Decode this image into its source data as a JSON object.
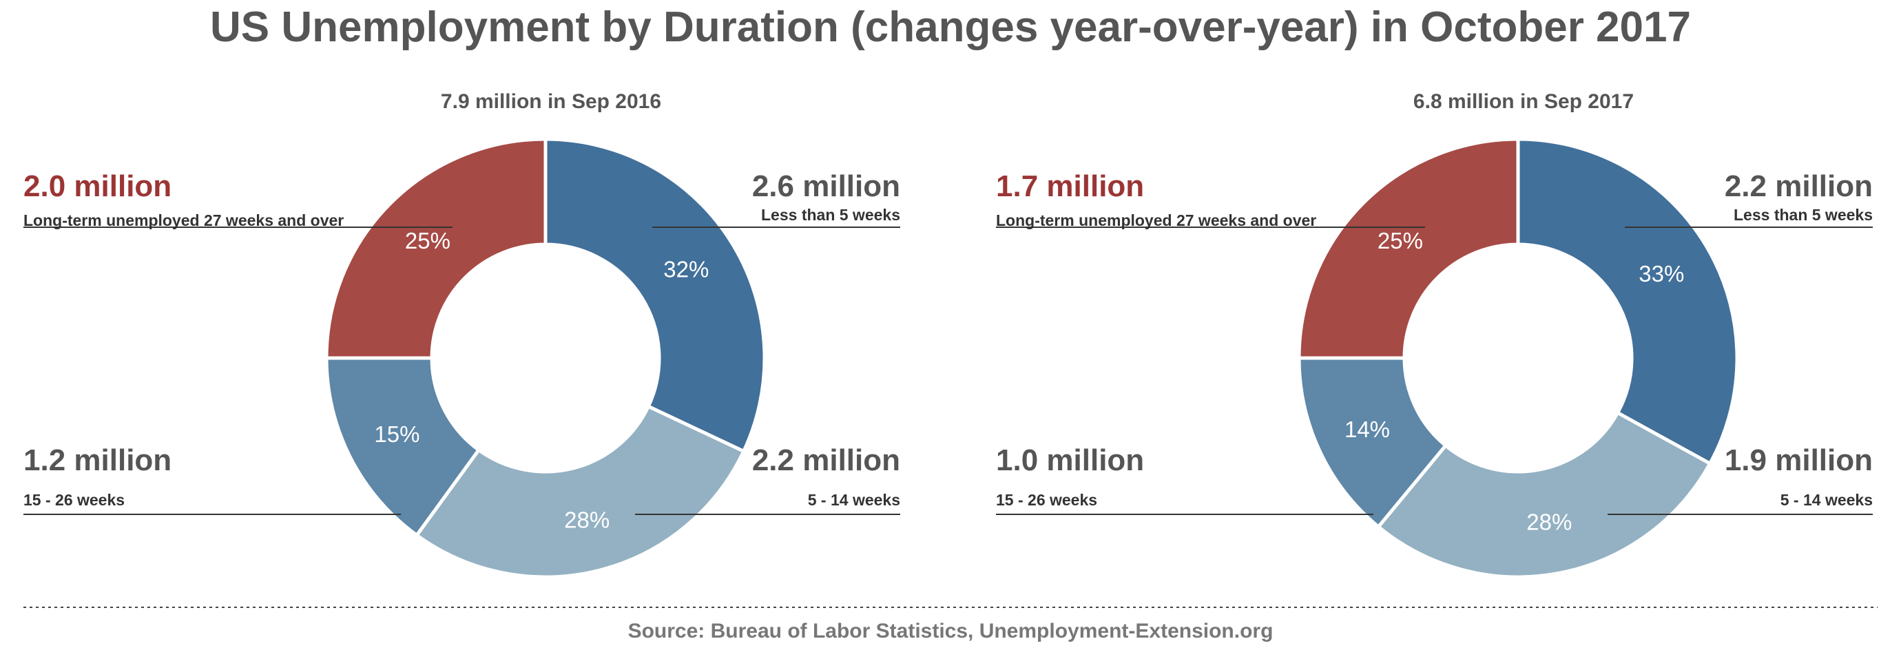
{
  "title": "US Unemployment by Duration (changes year-over-year) in October 2017",
  "source": "Source: Bureau of Labor Statistics, Unemployment-Extension.org",
  "colors": {
    "less_than_5": "#41709A",
    "w5_14": "#94B1C3",
    "w15_26": "#5E87A8",
    "long_term": "#A64A45",
    "text_gray": "#555555",
    "long_term_text": "#9B3535"
  },
  "chart_data": [
    {
      "type": "pie",
      "subtitle": "7.9 million in Sep 2016",
      "slices": [
        {
          "key": "less_than_5",
          "label": "Less than 5 weeks",
          "amount": "2.6 million",
          "percent": 32,
          "percent_label": "32%"
        },
        {
          "key": "w5_14",
          "label": "5 - 14 weeks",
          "amount": "2.2 million",
          "percent": 28,
          "percent_label": "28%"
        },
        {
          "key": "w15_26",
          "label": "15 - 26 weeks",
          "amount": "1.2 million",
          "percent": 15,
          "percent_label": "15%"
        },
        {
          "key": "long_term",
          "label": "Long-term unemployed 27 weeks and over",
          "amount": "2.0 million",
          "percent": 25,
          "percent_label": "25%"
        }
      ]
    },
    {
      "type": "pie",
      "subtitle": "6.8 million in Sep 2017",
      "slices": [
        {
          "key": "less_than_5",
          "label": "Less than 5 weeks",
          "amount": "2.2 million",
          "percent": 33,
          "percent_label": "33%"
        },
        {
          "key": "w5_14",
          "label": "5 - 14 weeks",
          "amount": "1.9 million",
          "percent": 28,
          "percent_label": "28%"
        },
        {
          "key": "w15_26",
          "label": "15 - 26 weeks",
          "amount": "1.0 million",
          "percent": 14,
          "percent_label": "14%"
        },
        {
          "key": "long_term",
          "label": "Long-term unemployed 27 weeks and over",
          "amount": "1.7 million",
          "percent": 25,
          "percent_label": "25%"
        }
      ]
    }
  ]
}
